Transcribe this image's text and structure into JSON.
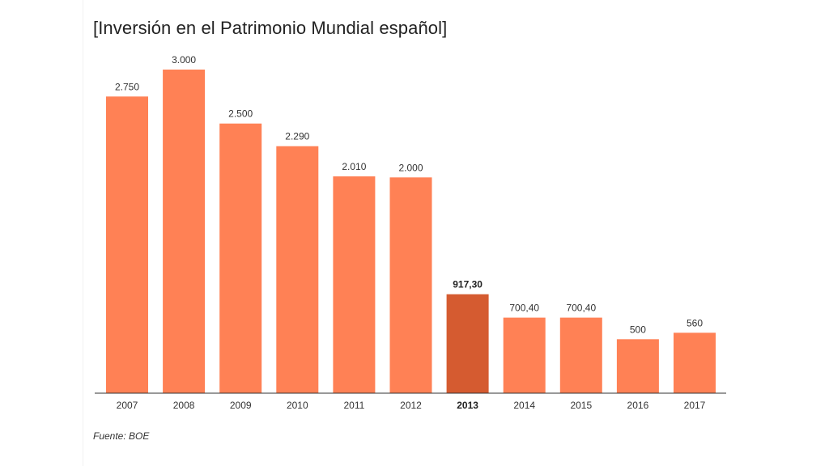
{
  "chart_data": {
    "type": "bar",
    "title": "[Inversión en el Patrimonio Mundial español]",
    "categories": [
      "2007",
      "2008",
      "2009",
      "2010",
      "2011",
      "2012",
      "2013",
      "2014",
      "2015",
      "2016",
      "2017"
    ],
    "values": [
      2750,
      3000,
      2500,
      2290,
      2010,
      2000,
      917.3,
      700.4,
      700.4,
      500,
      560
    ],
    "value_labels": [
      "2.750",
      "3.000",
      "2.500",
      "2.290",
      "2.010",
      "2.000",
      "917,30",
      "700,40",
      "700,40",
      "500",
      "560"
    ],
    "highlight_category": "2013",
    "ylim": [
      0,
      3000
    ],
    "grid": false,
    "legend": "none",
    "colors": {
      "bar": "#FF8155",
      "highlight": "#D55B30",
      "axis": "#333333"
    },
    "source": "Fuente: BOE"
  }
}
